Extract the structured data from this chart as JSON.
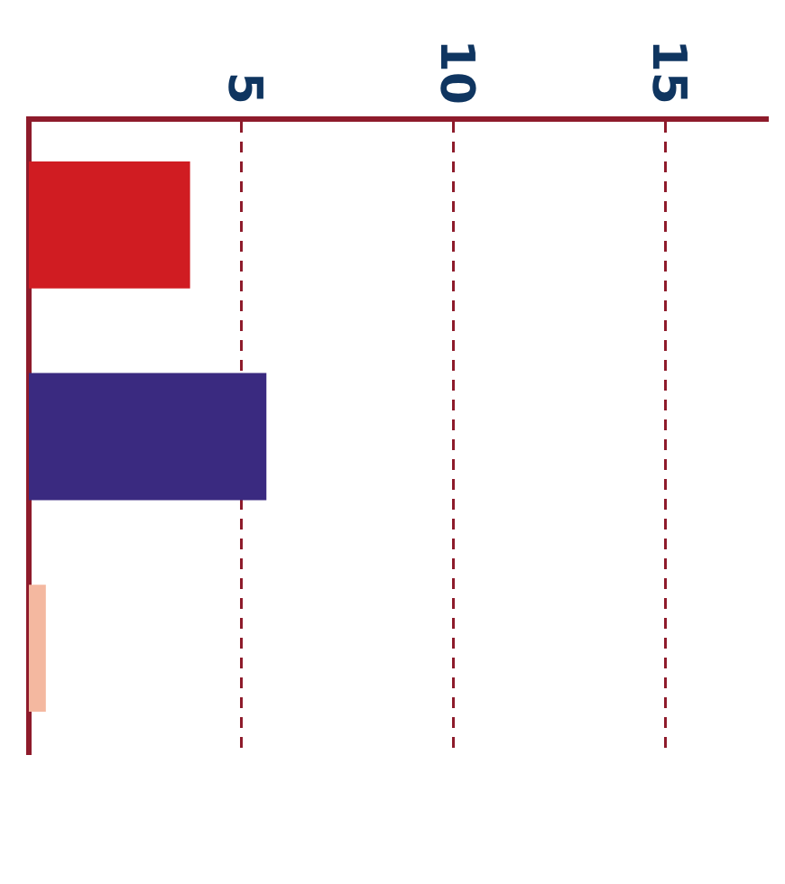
{
  "chart_data": {
    "type": "bar",
    "orientation": "horizontal",
    "categories": [
      null,
      null,
      null
    ],
    "values": [
      3.8,
      5.6,
      0.4
    ],
    "colors": [
      "#d01c22",
      "#3a2a80",
      "#f4b8a0"
    ],
    "xlim": [
      0,
      17.4
    ],
    "xticks": [
      5,
      10,
      15
    ],
    "grid": "x",
    "legend": false
  }
}
